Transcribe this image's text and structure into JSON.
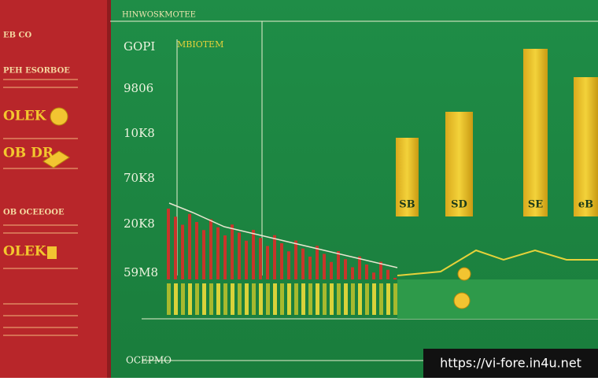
{
  "header": {
    "title": "HINWOSKMOTEE"
  },
  "sidebar": {
    "items": [
      {
        "label": "EB CO",
        "style": "small"
      },
      {
        "label": "PEH ESORBOE",
        "style": "small"
      },
      {
        "label": "OLEK",
        "style": "big"
      },
      {
        "label": "OB DR",
        "style": "big"
      },
      {
        "label": "OB OCEEOOE",
        "style": "small"
      },
      {
        "label": "OLEK",
        "style": "big"
      }
    ]
  },
  "chart": {
    "legend": "MBIOTEM",
    "y_labels": [
      "GOPI",
      "9806",
      "10K8",
      "70K8",
      "20K8",
      "59M8"
    ],
    "bar_labels": [
      "SB",
      "SD",
      "SE",
      "eB"
    ],
    "x_label": "OCEPMO"
  },
  "watermark": "https://vi-fore.in4u.net"
}
